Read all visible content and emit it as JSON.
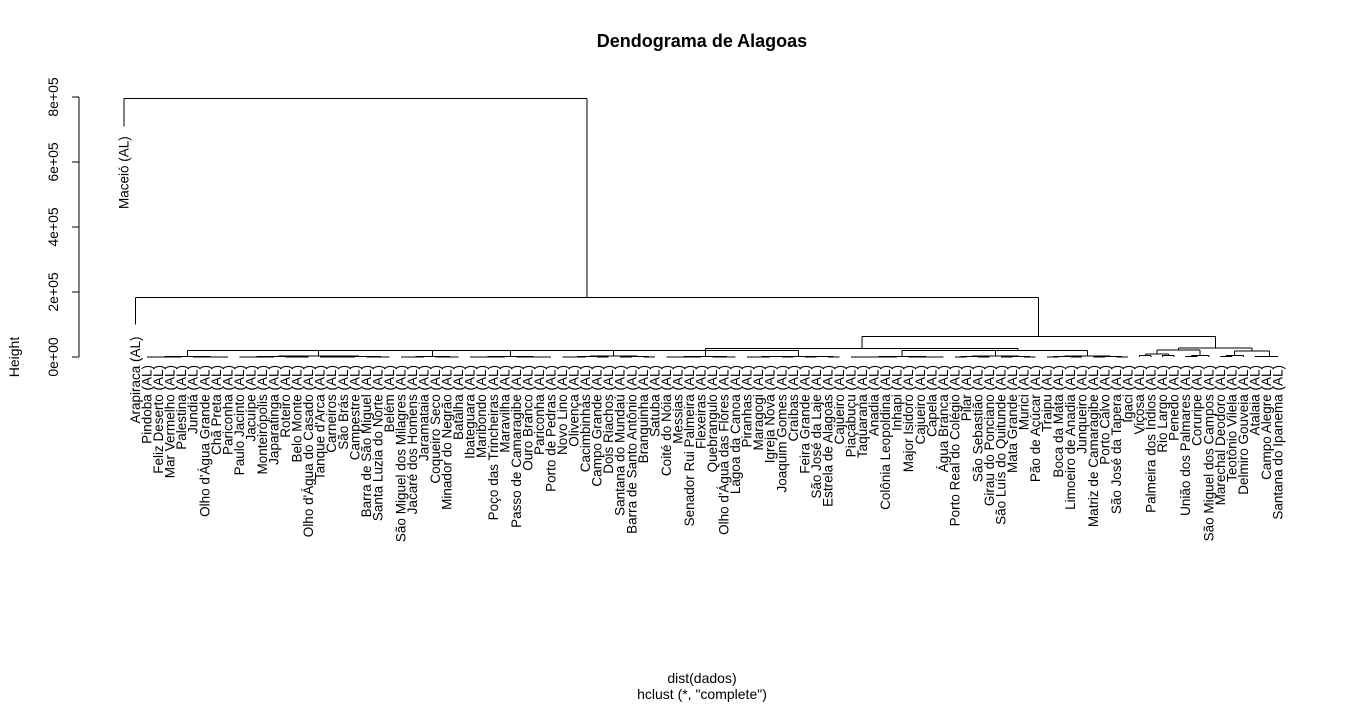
{
  "chart_data": {
    "type": "dendrogram",
    "title": "Dendograma de Alagoas",
    "xlabel": "dist(dados)",
    "sub": "hclust (*, \"complete\")",
    "ylabel": "Height",
    "ylim": [
      0,
      800000
    ],
    "yticks": [
      {
        "value": 0,
        "label": "0e+00"
      },
      {
        "value": 200000,
        "label": "2e+05"
      },
      {
        "value": 400000,
        "label": "4e+05"
      },
      {
        "value": 600000,
        "label": "6e+05"
      },
      {
        "value": 800000,
        "label": "8e+05"
      }
    ],
    "leaves": [
      "Maceió (AL)",
      "Arapiraca (AL)",
      "Pindoba (AL)",
      "Feliz Deserto (AL)",
      "Mar Vermelho (AL)",
      "Palestina (AL)",
      "Jundiá (AL)",
      "Olho d'Água Grande (AL)",
      "Chã Preta (AL)",
      "Pariconha (AL)",
      "Paulo Jacinto (AL)",
      "Jacuípe (AL)",
      "Monteirópolis (AL)",
      "Japaratinga (AL)",
      "Roteiro (AL)",
      "Belo Monte (AL)",
      "Olho d'Água do Casado (AL)",
      "Tanque d'Arca (AL)",
      "Carneiros (AL)",
      "São Brás (AL)",
      "Campestre (AL)",
      "Barra de São Miguel (AL)",
      "Santa Luzia do Norte (AL)",
      "Belém (AL)",
      "São Miguel dos Milagres (AL)",
      "Jacaré dos Homens (AL)",
      "Jaramataia (AL)",
      "Coqueiro Seco (AL)",
      "Minador do Negrão (AL)",
      "Batalha (AL)",
      "Ibateguara (AL)",
      "Maribondo (AL)",
      "Poço das Trincheiras (AL)",
      "Maravilha (AL)",
      "Passo de Camaragibe (AL)",
      "Ouro Branco (AL)",
      "Pariconha (AL)",
      "Porto de Pedras (AL)",
      "Novo Lino (AL)",
      "Olivença (AL)",
      "Cacimbinhas (AL)",
      "Campo Grande (AL)",
      "Dois Riachos (AL)",
      "Santana do Mundaú (AL)",
      "Barra de Santo Antônio (AL)",
      "Branquinha (AL)",
      "Satuba (AL)",
      "Coité do Nóia (AL)",
      "Messias (AL)",
      "Senador Rui Palmeira (AL)",
      "Flexeiras (AL)",
      "Quebrangulo (AL)",
      "Olho d'Água das Flores (AL)",
      "Lagoa da Canoa (AL)",
      "Piranhas (AL)",
      "Maragogi (AL)",
      "Igreja Nova (AL)",
      "Joaquim Gomes (AL)",
      "Craíbas (AL)",
      "Feira Grande (AL)",
      "São José da Laje (AL)",
      "Estrela de Alagoas (AL)",
      "Cajueiro (AL)",
      "Piaçabuçu (AL)",
      "Taquarana (AL)",
      "Anadia (AL)",
      "Colônia Leopoldina (AL)",
      "Inhapi (AL)",
      "Major Isidoro (AL)",
      "Cajueiro (AL)",
      "Capela (AL)",
      "Água Branca (AL)",
      "Porto Real do Colégio (AL)",
      "Pilar (AL)",
      "São Sebastião (AL)",
      "Girau do Ponciano (AL)",
      "São Luís do Quitunde (AL)",
      "Mata Grande (AL)",
      "Murici (AL)",
      "Pão de Açúcar (AL)",
      "Traipu (AL)",
      "Boca da Mata (AL)",
      "Limoeiro de Anadia (AL)",
      "Junqueiro (AL)",
      "Matriz de Camaragibe (AL)",
      "Porto Calvo (AL)",
      "São José da Tapera (AL)",
      "Igaci (AL)",
      "Viçosa (AL)",
      "Palmeira dos Índios (AL)",
      "Rio Largo (AL)",
      "Penedo (AL)",
      "União dos Palmares (AL)",
      "Coruripe (AL)",
      "São Miguel dos Campos (AL)",
      "Marechal Deodoro (AL)",
      "Teotônio Vilela (AL)",
      "Delmiro Gouveia (AL)",
      "Atalaia (AL)",
      "Campo Alegre (AL)",
      "Santana do Ipanema (AL)"
    ],
    "merge_heights": {
      "root": 795000,
      "maceio_stub": 710000,
      "arapiraca_vs_rest": 183000,
      "arapiraca_stub": 100000,
      "large_vs_small": 63000,
      "small_groups": 27000,
      "large_groups": 20000,
      "leaf_level": 0
    }
  }
}
